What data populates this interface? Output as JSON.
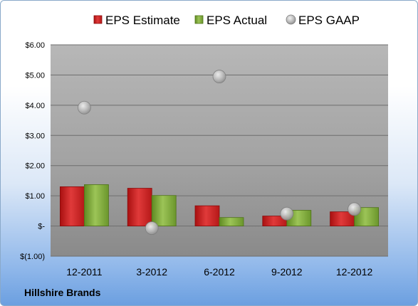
{
  "chart_data": {
    "type": "bar",
    "categories": [
      "12-2011",
      "3-2012",
      "6-2012",
      "9-2012",
      "12-2012"
    ],
    "series": [
      {
        "name": "EPS Estimate",
        "type": "bar",
        "color": "#cc2222",
        "values": [
          1.3,
          1.25,
          0.67,
          0.33,
          0.47
        ]
      },
      {
        "name": "EPS Actual",
        "type": "bar",
        "color": "#7ea63a",
        "values": [
          1.37,
          1.01,
          0.28,
          0.52,
          0.61
        ]
      },
      {
        "name": "EPS GAAP",
        "type": "scatter",
        "color": "#a9a9a9",
        "values": [
          3.92,
          -0.07,
          4.95,
          0.41,
          0.56
        ]
      }
    ],
    "y_ticks": [
      "$(1.00)",
      "$-",
      "$1.00",
      "$2.00",
      "$3.00",
      "$4.00",
      "$5.00",
      "$6.00"
    ],
    "ylim": [
      -1,
      6
    ],
    "grid": true,
    "legend_position": "top"
  },
  "company_label": "Hillshire Brands"
}
